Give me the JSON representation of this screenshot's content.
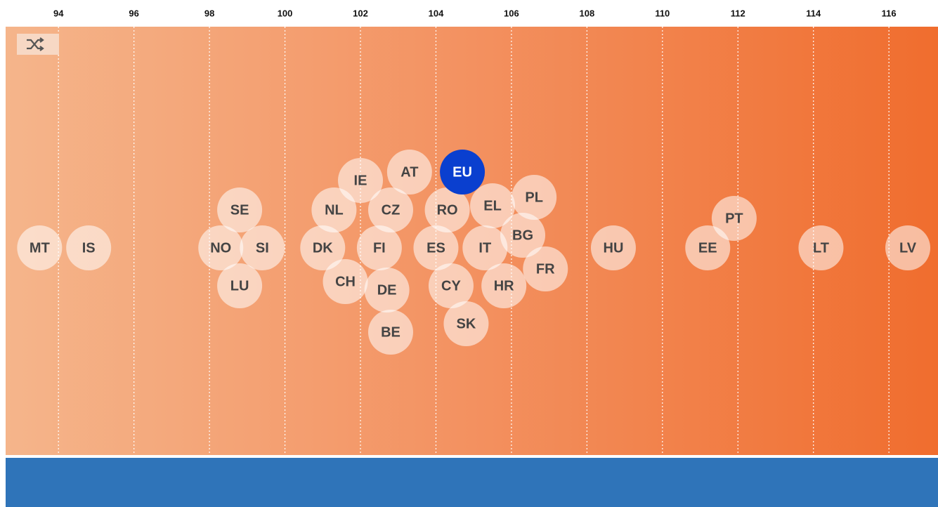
{
  "chart_data": {
    "type": "scatter",
    "xlim": [
      92.6,
      117.3
    ],
    "xticks": [
      94,
      96,
      98,
      100,
      102,
      104,
      106,
      108,
      110,
      112,
      114,
      116
    ],
    "grid": true,
    "color": "#ffffff",
    "highlight": {
      "name": "EU",
      "color": "#0a3fcf"
    },
    "points": [
      {
        "name": "MT",
        "x": 93.5
      },
      {
        "name": "IS",
        "x": 94.8
      },
      {
        "name": "NO",
        "x": 98.3
      },
      {
        "name": "SE",
        "x": 98.8
      },
      {
        "name": "LU",
        "x": 98.8
      },
      {
        "name": "SI",
        "x": 99.4
      },
      {
        "name": "DK",
        "x": 101.0
      },
      {
        "name": "NL",
        "x": 101.3
      },
      {
        "name": "CH",
        "x": 101.6
      },
      {
        "name": "IE",
        "x": 102.0
      },
      {
        "name": "FI",
        "x": 102.5
      },
      {
        "name": "DE",
        "x": 102.7
      },
      {
        "name": "CZ",
        "x": 102.8
      },
      {
        "name": "BE",
        "x": 102.8
      },
      {
        "name": "AT",
        "x": 103.3
      },
      {
        "name": "ES",
        "x": 104.0
      },
      {
        "name": "RO",
        "x": 104.3
      },
      {
        "name": "CY",
        "x": 104.4
      },
      {
        "name": "EU",
        "x": 104.7
      },
      {
        "name": "SK",
        "x": 104.8
      },
      {
        "name": "IT",
        "x": 105.3
      },
      {
        "name": "EL",
        "x": 105.5
      },
      {
        "name": "HR",
        "x": 105.8
      },
      {
        "name": "BG",
        "x": 106.3
      },
      {
        "name": "PL",
        "x": 106.6
      },
      {
        "name": "FR",
        "x": 106.9
      },
      {
        "name": "HU",
        "x": 108.7
      },
      {
        "name": "EE",
        "x": 111.2
      },
      {
        "name": "PT",
        "x": 111.9
      },
      {
        "name": "LT",
        "x": 114.2
      },
      {
        "name": "LV",
        "x": 116.5
      }
    ]
  }
}
